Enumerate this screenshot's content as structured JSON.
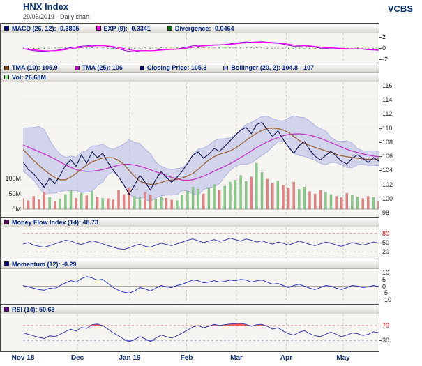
{
  "header": {
    "title": "HNX Index",
    "subtitle": "29/05/2019 - Daily chart",
    "brand": "VCBS"
  },
  "x_axis": {
    "labels": [
      {
        "label": "Nov 18",
        "f": 0.0
      },
      {
        "label": "Dec",
        "f": 0.153
      },
      {
        "label": "Jan 19",
        "f": 0.3
      },
      {
        "label": "Feb",
        "f": 0.46
      },
      {
        "label": "Mar",
        "f": 0.6
      },
      {
        "label": "Apr",
        "f": 0.74
      },
      {
        "label": "May",
        "f": 0.9
      }
    ],
    "month_fractions": [
      0.153,
      0.3,
      0.46,
      0.6,
      0.74,
      0.9
    ]
  },
  "chart_data": [
    {
      "id": "macd",
      "type": "line",
      "legend": [
        {
          "label": "MACD (26, 12): -0.3805",
          "color": "#000080"
        },
        {
          "label": "EXP (9): -0.3341",
          "color": "#ff00ff"
        },
        {
          "label": "Divergence: -0.0464",
          "color": "#0b6b0b"
        }
      ],
      "ylim": [
        -2.6,
        2.6
      ],
      "yticks": [
        {
          "v": 2,
          "label": "2"
        },
        {
          "v": 0,
          "label": "0"
        },
        {
          "v": -2,
          "label": "-2"
        }
      ],
      "divergence_color": "#1f7d1f",
      "divergence_note": "green bars/dots = MACD - EXP, final value -0.0464",
      "series": [
        {
          "name": "MACD (26,12)",
          "color": "#9400d3",
          "values": [
            -0.1,
            -0.3,
            -0.45,
            -0.55,
            -0.6,
            -0.5,
            -0.45,
            -0.3,
            -0.1,
            0.1,
            0.2,
            0.35,
            0.4,
            0.5,
            0.5,
            0.45,
            0.3,
            0.1,
            -0.15,
            -0.4,
            -0.6,
            -0.65,
            -0.5,
            -0.45,
            -0.5,
            -0.4,
            -0.25,
            -0.2,
            -0.2,
            -0.15,
            0.0,
            0.2,
            0.4,
            0.5,
            0.5,
            0.55,
            0.6,
            0.6,
            0.65,
            0.75,
            0.9,
            1.0,
            1.1,
            1.05,
            1.1,
            1.15,
            1.05,
            0.9,
            0.85,
            0.7,
            0.5,
            0.35,
            0.35,
            0.4,
            0.3,
            0.15,
            0.0,
            -0.05,
            0.0,
            -0.05,
            -0.15,
            -0.2,
            -0.15,
            -0.1,
            -0.2,
            -0.3,
            -0.35,
            -0.3805
          ]
        },
        {
          "name": "EXP (9)",
          "color": "#ff00ff",
          "values": [
            -0.1,
            -0.18,
            -0.29,
            -0.39,
            -0.47,
            -0.48,
            -0.47,
            -0.4,
            -0.28,
            -0.13,
            0.0,
            0.14,
            0.24,
            0.35,
            0.41,
            0.42,
            0.38,
            0.27,
            0.1,
            -0.1,
            -0.3,
            -0.44,
            -0.46,
            -0.46,
            -0.47,
            -0.44,
            -0.37,
            -0.3,
            -0.26,
            -0.22,
            -0.13,
            0.0,
            0.16,
            0.3,
            0.38,
            0.45,
            0.51,
            0.55,
            0.59,
            0.65,
            0.75,
            0.85,
            0.95,
            0.99,
            1.03,
            1.08,
            1.07,
            1.0,
            0.94,
            0.84,
            0.71,
            0.56,
            0.48,
            0.45,
            0.39,
            0.29,
            0.18,
            0.09,
            0.05,
            0.01,
            -0.05,
            -0.11,
            -0.13,
            -0.12,
            -0.15,
            -0.21,
            -0.27,
            -0.3341
          ]
        }
      ]
    },
    {
      "id": "price",
      "type": "line+band+volume",
      "legend": [
        {
          "label": "TMA (10): 105.9",
          "color": "#8b4513"
        },
        {
          "label": "TMA (25): 106",
          "color": "#bb00bb"
        },
        {
          "label": "Closing Price: 105.3",
          "color": "#000066"
        },
        {
          "label": "Bollinger (20, 2): 104.8 - 107",
          "color": "#aab4e8"
        }
      ],
      "legend2": [
        {
          "label": "Vol: 26.68M",
          "color": "#90ee90"
        }
      ],
      "ylim": [
        97.5,
        116.5
      ],
      "yticks": [
        116,
        114,
        112,
        110,
        108,
        106,
        104,
        102,
        100,
        98
      ],
      "close_color": "#12124e",
      "tma10_color": "#9a5a28",
      "tma25_color": "#c433c4",
      "bollinger_fill": "#b3b8e6",
      "volume_bar_colors": {
        "up": "#8cc98c",
        "down": "#e08383"
      },
      "overlay_note": "TMA(10), TMA(25) and Bollinger(20,2)=MA±2σ overlays are derived from close series",
      "warmup_close": [
        107.0,
        108.6,
        109.4,
        108.2,
        106.6,
        105.8,
        105.0
      ],
      "close": [
        105.2,
        104.1,
        103.5,
        102.6,
        101.6,
        102.9,
        102.1,
        103.3,
        104.7,
        105.5,
        104.6,
        106.2,
        105.0,
        106.6,
        105.8,
        106.4,
        105.1,
        104.0,
        103.1,
        101.9,
        100.6,
        101.9,
        103.3,
        102.3,
        101.2,
        102.7,
        103.8,
        103.0,
        102.3,
        103.0,
        103.9,
        105.0,
        106.2,
        106.6,
        105.7,
        106.3,
        107.1,
        106.7,
        107.4,
        108.2,
        109.0,
        109.7,
        110.1,
        109.2,
        110.5,
        110.8,
        109.8,
        108.8,
        109.6,
        108.4,
        107.3,
        106.4,
        107.5,
        108.1,
        106.9,
        106.0,
        105.5,
        106.1,
        106.7,
        106.0,
        105.3,
        104.9,
        105.7,
        106.2,
        105.7,
        105.1,
        105.8,
        105.3
      ],
      "volume_m": [
        35,
        28,
        42,
        31,
        55,
        38,
        26,
        33,
        48,
        60,
        36,
        52,
        44,
        58,
        40,
        35,
        35,
        30,
        62,
        48,
        70,
        42,
        38,
        55,
        45,
        33,
        40,
        36,
        30,
        28,
        45,
        58,
        72,
        65,
        50,
        68,
        80,
        62,
        75,
        88,
        95,
        110,
        90,
        105,
        150,
        120,
        98,
        85,
        92,
        78,
        70,
        88,
        65,
        72,
        58,
        50,
        62,
        55,
        48,
        42,
        38,
        52,
        45,
        40,
        35,
        42,
        38,
        27
      ],
      "vol_axis": [
        {
          "v": 100,
          "label": "100M"
        },
        {
          "v": 50,
          "label": "50M"
        },
        {
          "v": 0,
          "label": "0M"
        }
      ]
    },
    {
      "id": "mfi",
      "type": "line",
      "legend": [
        {
          "label": "Money Flow Index (14): 48.73",
          "color": "#660066"
        }
      ],
      "ylim": [
        0,
        100
      ],
      "yticks": [
        {
          "v": 80,
          "label": "80",
          "color": "#cc0000"
        },
        {
          "v": 50,
          "label": "50"
        },
        {
          "v": 20,
          "label": "20"
        }
      ],
      "color": "#3a3aad",
      "values": [
        45,
        50,
        42,
        38,
        35,
        40,
        46,
        52,
        58,
        55,
        48,
        44,
        50,
        56,
        52,
        46,
        40,
        35,
        30,
        28,
        33,
        40,
        45,
        38,
        35,
        42,
        48,
        44,
        40,
        46,
        52,
        58,
        62,
        56,
        50,
        55,
        60,
        54,
        58,
        64,
        60,
        55,
        62,
        58,
        52,
        56,
        50,
        45,
        52,
        48,
        42,
        48,
        55,
        50,
        44,
        40,
        46,
        52,
        48,
        42,
        38,
        44,
        50,
        46,
        42,
        46,
        52,
        48.73
      ]
    },
    {
      "id": "momentum",
      "type": "line",
      "legend": [
        {
          "label": "Momentum (12): -0.29",
          "color": "#000080"
        }
      ],
      "ylim": [
        -12.5,
        12.5
      ],
      "yticks": [
        {
          "v": 10,
          "label": "10"
        },
        {
          "v": 5,
          "label": "5"
        },
        {
          "v": 0,
          "label": "0"
        },
        {
          "v": -5,
          "label": "-5"
        },
        {
          "v": -10,
          "label": "-10"
        }
      ],
      "color": "#2833c0",
      "values": [
        0.5,
        -0.5,
        -1.5,
        -2.5,
        -3.0,
        -1.5,
        -2.0,
        0.5,
        2.5,
        4.0,
        3.0,
        5.5,
        7.0,
        6.0,
        4.5,
        5.0,
        2.0,
        -1.0,
        -3.0,
        -4.5,
        -5.0,
        -3.5,
        -1.0,
        -2.0,
        -3.5,
        -1.5,
        0.5,
        -0.5,
        -1.0,
        0.5,
        1.5,
        3.0,
        4.5,
        4.0,
        2.5,
        3.0,
        4.0,
        3.0,
        3.5,
        4.5,
        4.0,
        5.0,
        4.5,
        3.0,
        4.0,
        4.5,
        3.0,
        1.5,
        2.0,
        0.5,
        -1.0,
        0.5,
        1.5,
        0.0,
        -1.5,
        -2.5,
        -1.0,
        0.5,
        0.0,
        -1.5,
        -2.5,
        -1.0,
        0.5,
        0.0,
        -1.0,
        -0.5,
        0.5,
        -0.29
      ]
    },
    {
      "id": "rsi",
      "type": "line",
      "legend": [
        {
          "label": "RSI (14): 50.63",
          "color": "#660099"
        }
      ],
      "ylim": [
        0,
        100
      ],
      "yticks": [
        {
          "v": 70,
          "label": "70",
          "color": "#cc0000"
        },
        {
          "v": 30,
          "label": "30"
        }
      ],
      "color": "#3a3aad",
      "overbought": 70,
      "oversold": 30,
      "fill_above": "#ff3030",
      "fill_below": "#5b5bd6",
      "values": [
        50,
        46,
        42,
        38,
        35,
        42,
        40,
        46,
        54,
        60,
        55,
        65,
        62,
        72,
        74,
        70,
        60,
        50,
        42,
        33,
        26,
        32,
        40,
        34,
        27,
        36,
        44,
        40,
        36,
        42,
        50,
        58,
        66,
        70,
        64,
        68,
        73,
        70,
        72,
        74,
        75,
        76,
        73,
        68,
        72,
        73,
        68,
        60,
        64,
        55,
        48,
        44,
        52,
        56,
        48,
        42,
        40,
        46,
        52,
        46,
        40,
        44,
        50,
        48,
        43,
        46,
        53,
        50.63
      ]
    }
  ]
}
